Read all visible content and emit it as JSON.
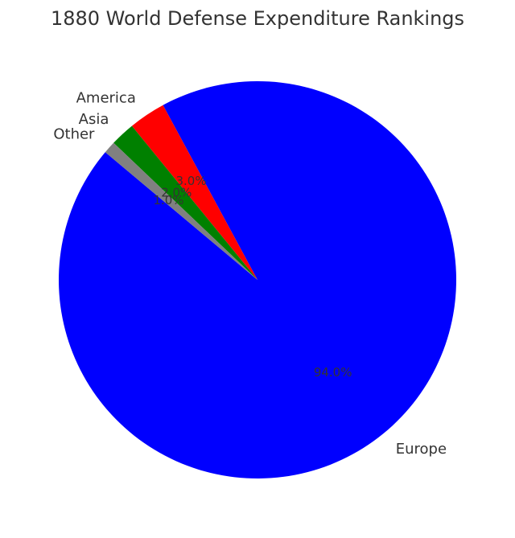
{
  "chart_data": {
    "type": "pie",
    "title": "1880 World Defense Expenditure Rankings",
    "labels": [
      "Europe",
      "America",
      "Asia",
      "Other"
    ],
    "values": [
      94.0,
      3.0,
      2.0,
      1.0
    ],
    "value_labels": [
      "94.0%",
      "3.0%",
      "2.0%",
      "1.0%"
    ],
    "colors": [
      "#0000ff",
      "#ff0000",
      "#008000",
      "#808080"
    ],
    "start_angle_deg": 140,
    "direction": "counterclockwise"
  }
}
